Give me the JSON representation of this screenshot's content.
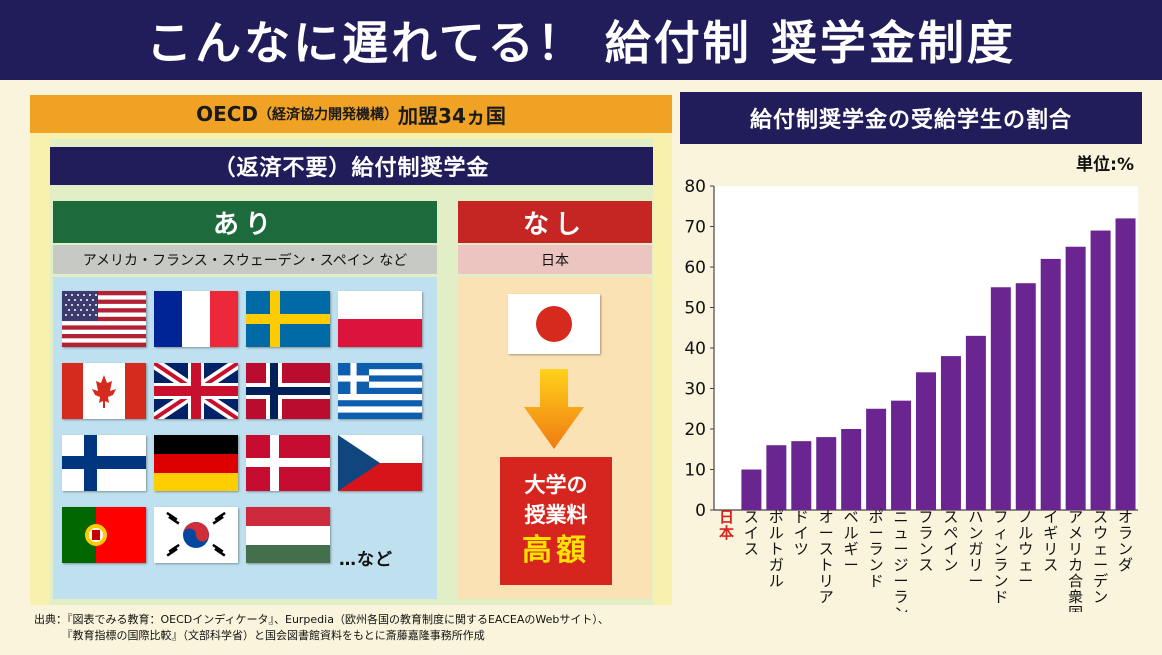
{
  "header": {
    "title": "こんなに遅れてる！ 給付制 奨学金制度"
  },
  "left": {
    "oecd_main": "OECD",
    "oecd_paren": "（経済協力開発機構）",
    "oecd_tail": "加盟34ヵ国",
    "kyuufu_title": "（返済不要）給付制奨学金",
    "ari": {
      "label": "あり",
      "countries": "アメリカ・フランス・スウェーデン・スペイン など"
    },
    "nashi": {
      "label": "なし",
      "country": "日本"
    },
    "flags": [
      "usa-flag",
      "france-flag",
      "sweden-flag",
      "poland-flag",
      "canada-flag",
      "uk-flag",
      "norway-flag",
      "greece-flag",
      "finland-flag",
      "germany-flag",
      "denmark-flag",
      "czech-flag",
      "portugal-flag",
      "korea-flag",
      "hungary-flag"
    ],
    "etc": "…など",
    "tuition": {
      "line1": "大学の",
      "line2": "授業料",
      "line3": "高額"
    }
  },
  "source": {
    "line1": "出典：『図表でみる教育：OECDインディケータ』、Eurpedia（欧州各国の教育制度に関するEACEAのWebサイト）、",
    "line2": "　　　『教育指標の国際比較』（文部科学省）と国会図書館資料をもとに斎藤嘉隆事務所作成"
  },
  "chart_title": "給付制奨学金の受給学生の割合",
  "unit": "単位:%",
  "colors": {
    "navy": "#211d5a",
    "bar": "#6b2590",
    "japan_label": "#d6251e"
  },
  "chart_data": {
    "type": "bar",
    "categories": [
      "日本",
      "スイス",
      "ポルトガル",
      "ドイツ",
      "オーストリア",
      "ベルギー",
      "ポーランド",
      "ニュージーランド",
      "フランス",
      "スペイン",
      "ハンガリー",
      "フィンランド",
      "ノルウェー",
      "イギリス",
      "アメリカ合衆国",
      "スウェーデン",
      "オランダ"
    ],
    "values": [
      0,
      10,
      16,
      17,
      18,
      20,
      25,
      27,
      34,
      38,
      43,
      55,
      56,
      62,
      65,
      69,
      72
    ],
    "yticks": [
      "0",
      "10",
      "20",
      "30",
      "40",
      "50",
      "60",
      "70",
      "80"
    ],
    "ylim": [
      0,
      80
    ],
    "grid": false
  }
}
